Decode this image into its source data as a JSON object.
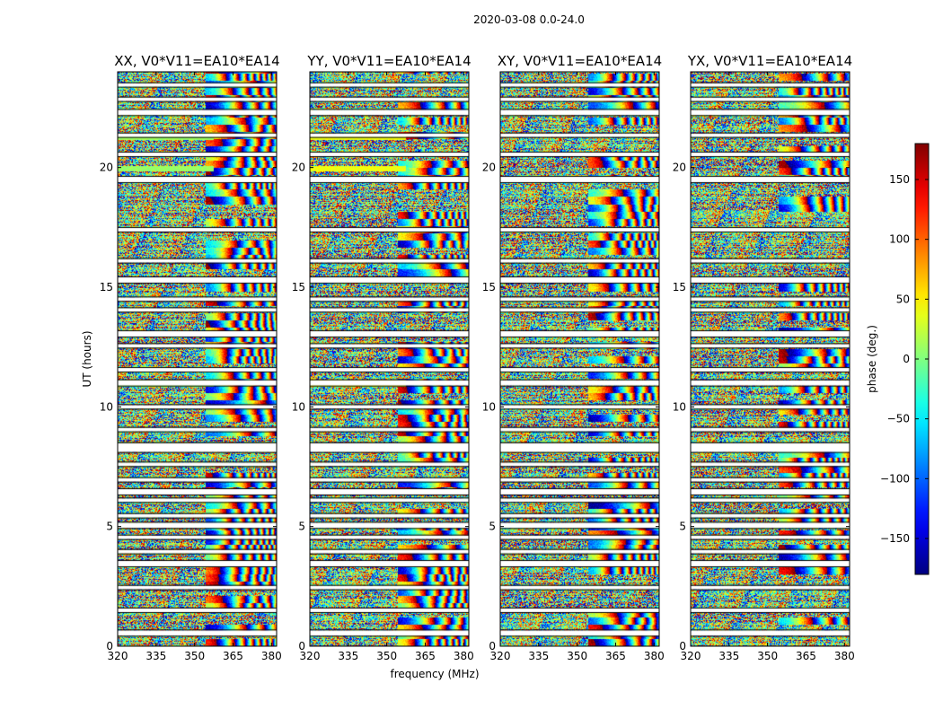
{
  "figure": {
    "title": "2020-03-08 0.0-24.0"
  },
  "chart_data": {
    "type": "heatmap",
    "panels": [
      {
        "title": "XX, V0*V11=EA10*EA14"
      },
      {
        "title": "YY, V0*V11=EA10*EA14"
      },
      {
        "title": "XY, V0*V11=EA10*EA14"
      },
      {
        "title": "YX, V0*V11=EA10*EA14"
      }
    ],
    "xlabel": "frequency (MHz)",
    "ylabel": "UT (hours)",
    "xlim": [
      320,
      382
    ],
    "ylim": [
      0,
      24
    ],
    "xticks": [
      "320",
      "335",
      "350",
      "365",
      "380"
    ],
    "xtick_values": [
      320,
      335,
      350,
      365,
      380
    ],
    "yticks": [
      "0",
      "5",
      "10",
      "15",
      "20"
    ],
    "ytick_values": [
      0,
      5,
      10,
      15,
      20
    ],
    "colorbar": {
      "label": "phase (deg.)",
      "range": [
        -180,
        180
      ],
      "ticks": [
        "−150",
        "−100",
        "−50",
        "0",
        "50",
        "100",
        "150"
      ],
      "tick_values": [
        -150,
        -100,
        -50,
        0,
        50,
        100,
        150
      ],
      "colormap": "jet"
    },
    "grid": false,
    "flagged_ut_hours": [
      0.55,
      1.5,
      2.45,
      3.45,
      3.95,
      4.55,
      5.05,
      5.45,
      6.1,
      6.45,
      6.95,
      7.6,
      8.35,
      9.05,
      10.0,
      11.0,
      11.55,
      12.55,
      13.05,
      14.05,
      14.5,
      15.3,
      16.1,
      17.4,
      19.5,
      20.55,
      21.35,
      22.3,
      22.85,
      23.45
    ]
  }
}
